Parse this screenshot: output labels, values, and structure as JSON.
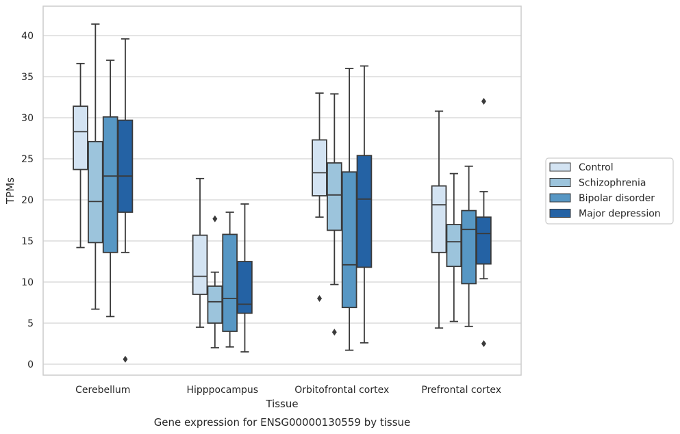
{
  "caption": "Gene expression for ENSG00000130559 by tissue",
  "colors": {
    "grid": "#d4d4d4",
    "frame": "#cccccc",
    "box_edge": "#3a3a3a",
    "series": [
      "#d3e3f2",
      "#9cc4dc",
      "#5797c4",
      "#2462a4"
    ]
  },
  "chart_data": {
    "type": "box",
    "xlabel": "Tissue",
    "ylabel": "TPMs",
    "ylim": [
      -1.3,
      43.5
    ],
    "yticks": [
      0,
      5,
      10,
      15,
      20,
      25,
      30,
      35,
      40
    ],
    "grid": "horizontal",
    "legend_position": "right",
    "categories": [
      "Cerebellum",
      "Hipppocampus",
      "Orbitofrontal cortex",
      "Prefrontal cortex"
    ],
    "series": [
      {
        "name": "Control",
        "boxes": [
          {
            "min": 14.2,
            "q1": 23.7,
            "median": 28.3,
            "q3": 31.4,
            "max": 36.6,
            "outliers": []
          },
          {
            "min": 4.5,
            "q1": 8.5,
            "median": 10.7,
            "q3": 15.7,
            "max": 22.6,
            "outliers": []
          },
          {
            "min": 17.9,
            "q1": 20.5,
            "median": 23.3,
            "q3": 27.3,
            "max": 33.0,
            "outliers": [
              8.0
            ]
          },
          {
            "min": 4.4,
            "q1": 13.6,
            "median": 19.4,
            "q3": 21.7,
            "max": 30.8,
            "outliers": []
          }
        ]
      },
      {
        "name": "Schizophrenia",
        "boxes": [
          {
            "min": 6.7,
            "q1": 14.8,
            "median": 19.8,
            "q3": 27.1,
            "max": 41.4,
            "outliers": []
          },
          {
            "min": 2.0,
            "q1": 5.0,
            "median": 7.6,
            "q3": 9.5,
            "max": 11.2,
            "outliers": [
              17.7
            ]
          },
          {
            "min": 9.7,
            "q1": 16.3,
            "median": 20.6,
            "q3": 24.5,
            "max": 32.9,
            "outliers": [
              3.9
            ]
          },
          {
            "min": 5.2,
            "q1": 11.9,
            "median": 14.9,
            "q3": 17.0,
            "max": 23.2,
            "outliers": []
          }
        ]
      },
      {
        "name": "Bipolar disorder",
        "boxes": [
          {
            "min": 5.8,
            "q1": 13.6,
            "median": 22.9,
            "q3": 30.1,
            "max": 37.0,
            "outliers": []
          },
          {
            "min": 2.1,
            "q1": 4.0,
            "median": 8.0,
            "q3": 15.8,
            "max": 18.5,
            "outliers": []
          },
          {
            "min": 1.7,
            "q1": 6.9,
            "median": 12.1,
            "q3": 23.4,
            "max": 36.0,
            "outliers": []
          },
          {
            "min": 4.6,
            "q1": 9.8,
            "median": 16.4,
            "q3": 18.7,
            "max": 24.1,
            "outliers": []
          }
        ]
      },
      {
        "name": "Major depression",
        "boxes": [
          {
            "min": 13.6,
            "q1": 18.5,
            "median": 22.9,
            "q3": 29.7,
            "max": 39.6,
            "outliers": [
              0.6
            ]
          },
          {
            "min": 1.5,
            "q1": 6.2,
            "median": 7.3,
            "q3": 12.5,
            "max": 19.5,
            "outliers": []
          },
          {
            "min": 2.6,
            "q1": 11.8,
            "median": 20.1,
            "q3": 25.4,
            "max": 36.3,
            "outliers": []
          },
          {
            "min": 10.4,
            "q1": 12.2,
            "median": 15.9,
            "q3": 17.9,
            "max": 21.0,
            "outliers": [
              32.0,
              2.5
            ]
          }
        ]
      }
    ]
  }
}
